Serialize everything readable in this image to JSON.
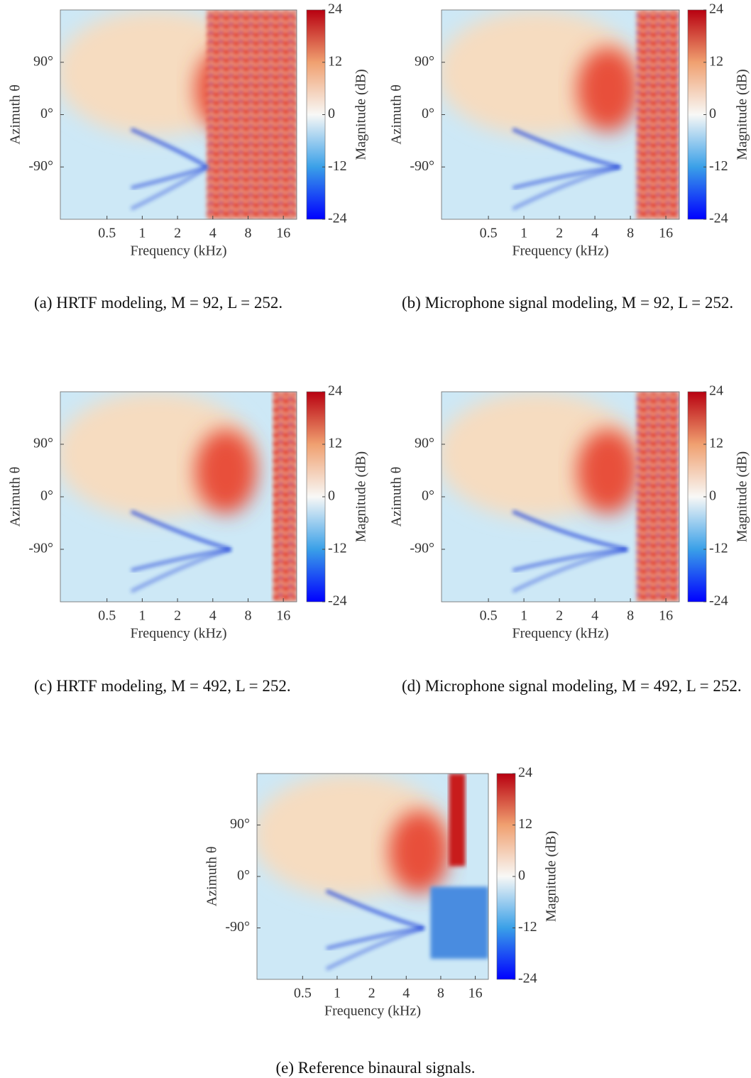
{
  "chart_data": [
    {
      "type": "heatmap",
      "xlabel": "Frequency (kHz)",
      "ylabel": "Azimuth θ",
      "colorbar_label": "Magnitude (dB)",
      "caption": "(a) HRTF modeling, M = 92, L = 252.",
      "log_x": true,
      "xlim": [
        0.2,
        20.8
      ],
      "xticks": [
        0.5,
        1,
        2,
        4,
        8,
        16
      ],
      "ylim": [
        -180,
        180
      ],
      "yticks": [
        {
          "value": 90,
          "label": "90°"
        },
        {
          "value": 0,
          "label": "0°"
        },
        {
          "value": -90,
          "label": "-90°"
        }
      ],
      "clim": [
        -24,
        24
      ],
      "cticks": [
        24,
        12,
        0,
        -12,
        -24
      ]
    },
    {
      "type": "heatmap",
      "xlabel": "Frequency (kHz)",
      "ylabel": "Azimuth θ",
      "colorbar_label": "Magnitude (dB)",
      "caption": "(b) Microphone signal modeling, M = 92, L = 252.",
      "log_x": true,
      "xlim": [
        0.2,
        20.8
      ],
      "xticks": [
        0.5,
        1,
        2,
        4,
        8,
        16
      ],
      "ylim": [
        -180,
        180
      ],
      "yticks": [
        {
          "value": 90,
          "label": "90°"
        },
        {
          "value": 0,
          "label": "0°"
        },
        {
          "value": -90,
          "label": "-90°"
        }
      ],
      "clim": [
        -24,
        24
      ],
      "cticks": [
        24,
        12,
        0,
        -12,
        -24
      ]
    },
    {
      "type": "heatmap",
      "xlabel": "Frequency (kHz)",
      "ylabel": "Azimuth θ",
      "colorbar_label": "Magnitude (dB)",
      "caption": "(c) HRTF modeling, M = 492, L = 252.",
      "log_x": true,
      "xlim": [
        0.2,
        20.8
      ],
      "xticks": [
        0.5,
        1,
        2,
        4,
        8,
        16
      ],
      "ylim": [
        -180,
        180
      ],
      "yticks": [
        {
          "value": 90,
          "label": "90°"
        },
        {
          "value": 0,
          "label": "0°"
        },
        {
          "value": -90,
          "label": "-90°"
        }
      ],
      "clim": [
        -24,
        24
      ],
      "cticks": [
        24,
        12,
        0,
        -12,
        -24
      ]
    },
    {
      "type": "heatmap",
      "xlabel": "Frequency (kHz)",
      "ylabel": "Azimuth θ",
      "colorbar_label": "Magnitude (dB)",
      "caption": "(d) Microphone signal modeling, M = 492, L = 252.",
      "log_x": true,
      "xlim": [
        0.2,
        20.8
      ],
      "xticks": [
        0.5,
        1,
        2,
        4,
        8,
        16
      ],
      "ylim": [
        -180,
        180
      ],
      "yticks": [
        {
          "value": 90,
          "label": "90°"
        },
        {
          "value": 0,
          "label": "0°"
        },
        {
          "value": -90,
          "label": "-90°"
        }
      ],
      "clim": [
        -24,
        24
      ],
      "cticks": [
        24,
        12,
        0,
        -12,
        -24
      ]
    },
    {
      "type": "heatmap",
      "xlabel": "Frequency (kHz)",
      "ylabel": "Azimuth θ",
      "colorbar_label": "Magnitude (dB)",
      "caption": "(e) Reference binaural signals.",
      "log_x": true,
      "xlim": [
        0.2,
        20.8
      ],
      "xticks": [
        0.5,
        1,
        2,
        4,
        8,
        16
      ],
      "ylim": [
        -180,
        180
      ],
      "yticks": [
        {
          "value": 90,
          "label": "90°"
        },
        {
          "value": 0,
          "label": "0°"
        },
        {
          "value": -90,
          "label": "-90°"
        }
      ],
      "clim": [
        -24,
        24
      ],
      "cticks": [
        24,
        12,
        0,
        -12,
        -24
      ]
    }
  ]
}
